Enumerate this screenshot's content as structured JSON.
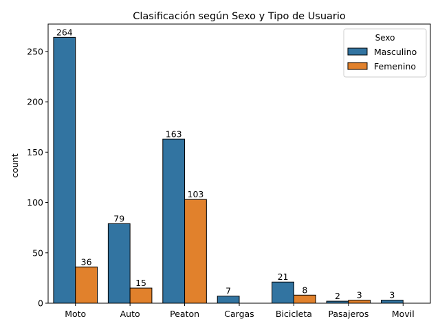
{
  "chart_data": {
    "type": "bar",
    "title": "Clasificación según Sexo y Tipo de Usuario",
    "xlabel": "",
    "ylabel": "count",
    "categories": [
      "Moto",
      "Auto",
      "Peaton",
      "Cargas",
      "Bicicleta",
      "Pasajeros",
      "Movil"
    ],
    "series": [
      {
        "name": "Masculino",
        "color": "#3274a1",
        "values": [
          264,
          79,
          163,
          7,
          21,
          2,
          3
        ]
      },
      {
        "name": "Femenino",
        "color": "#e1812c",
        "values": [
          36,
          15,
          103,
          null,
          8,
          3,
          null
        ]
      }
    ],
    "data_labels": [
      [
        "264",
        "79",
        "163",
        "7",
        "21",
        "2",
        "3"
      ],
      [
        "36",
        "15",
        "103",
        "",
        "8",
        "3",
        ""
      ]
    ],
    "yticks": [
      0,
      50,
      100,
      150,
      200,
      250
    ],
    "ylim": [
      0,
      277.2
    ],
    "grid": false,
    "legend": {
      "title": "Sexo",
      "position": "top-right"
    }
  }
}
